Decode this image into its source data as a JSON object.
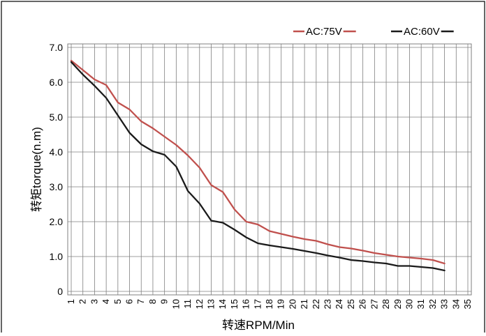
{
  "colors": {
    "background": "#ffffff",
    "grid": "#7f7f7f",
    "frame": "#000000"
  },
  "chart_data": {
    "type": "line",
    "title": "",
    "xlabel": "转速RPM/Min",
    "ylabel": "转矩torque(n.m)",
    "x_ticks": [
      "1",
      "2",
      "3",
      "4",
      "5",
      "6",
      "7",
      "8",
      "9",
      "10",
      "11",
      "12",
      "13",
      "14",
      "15",
      "16",
      "17",
      "18",
      "19",
      "20",
      "21",
      "22",
      "23",
      "24",
      "25",
      "26",
      "27",
      "28",
      "29",
      "30",
      "31",
      "32",
      "33",
      "34",
      "35"
    ],
    "y_ticks": [
      "0",
      "1.0",
      "2.0",
      "3.0",
      "4.0",
      "5.0",
      "6.0",
      "7.0"
    ],
    "xlim": [
      1,
      35
    ],
    "ylim": [
      0,
      7
    ],
    "grid": true,
    "legend_position": "top-right",
    "series": [
      {
        "name": "AC:75V",
        "color": "#c0504d",
        "x": [
          1,
          2,
          3,
          4,
          5,
          6,
          7,
          8,
          9,
          10,
          11,
          12,
          13,
          14,
          15,
          16,
          17,
          18,
          19,
          20,
          21,
          22,
          23,
          24,
          25,
          26,
          27,
          28,
          29,
          30,
          31,
          32,
          33
        ],
        "y": [
          6.62,
          6.35,
          6.08,
          5.92,
          5.42,
          5.22,
          4.88,
          4.68,
          4.44,
          4.2,
          3.9,
          3.55,
          3.05,
          2.85,
          2.35,
          2.0,
          1.92,
          1.73,
          1.65,
          1.57,
          1.5,
          1.45,
          1.35,
          1.27,
          1.23,
          1.17,
          1.1,
          1.05,
          1.0,
          0.97,
          0.94,
          0.9,
          0.8
        ]
      },
      {
        "name": "AC:60V",
        "color": "#1a1a1a",
        "x": [
          1,
          2,
          3,
          4,
          5,
          6,
          7,
          8,
          9,
          10,
          11,
          12,
          13,
          14,
          15,
          16,
          17,
          18,
          19,
          20,
          21,
          22,
          23,
          24,
          25,
          26,
          27,
          28,
          29,
          30,
          31,
          32,
          33
        ],
        "y": [
          6.58,
          6.22,
          5.9,
          5.55,
          5.05,
          4.55,
          4.22,
          4.02,
          3.92,
          3.58,
          2.88,
          2.52,
          2.03,
          1.97,
          1.77,
          1.55,
          1.38,
          1.32,
          1.27,
          1.22,
          1.16,
          1.1,
          1.03,
          0.97,
          0.9,
          0.87,
          0.83,
          0.8,
          0.73,
          0.73,
          0.7,
          0.67,
          0.6
        ]
      }
    ]
  }
}
